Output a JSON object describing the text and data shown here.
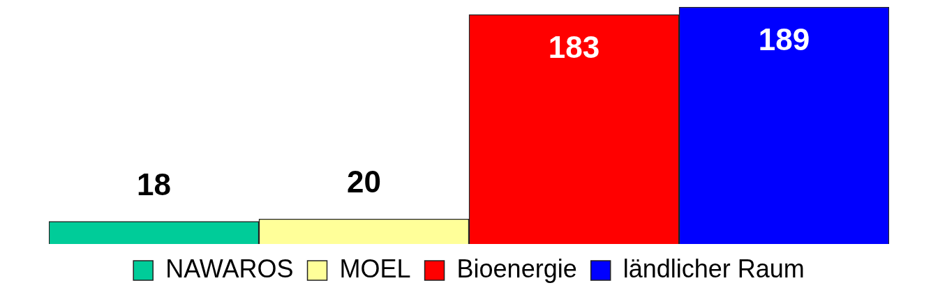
{
  "chart_data": {
    "type": "bar",
    "categories": [
      null
    ],
    "series": [
      {
        "name": "NAWAROS",
        "color": "#00cc99",
        "values": [
          18
        ]
      },
      {
        "name": "MOEL",
        "color": "#ffff99",
        "values": [
          20
        ]
      },
      {
        "name": "Bioenergie",
        "color": "#ff0000",
        "values": [
          183
        ]
      },
      {
        "name": "ländlicher Raum",
        "color": "#0000ff",
        "values": [
          189
        ]
      }
    ],
    "data_labels": true,
    "legend": "bottom",
    "tick_labels": false
  }
}
